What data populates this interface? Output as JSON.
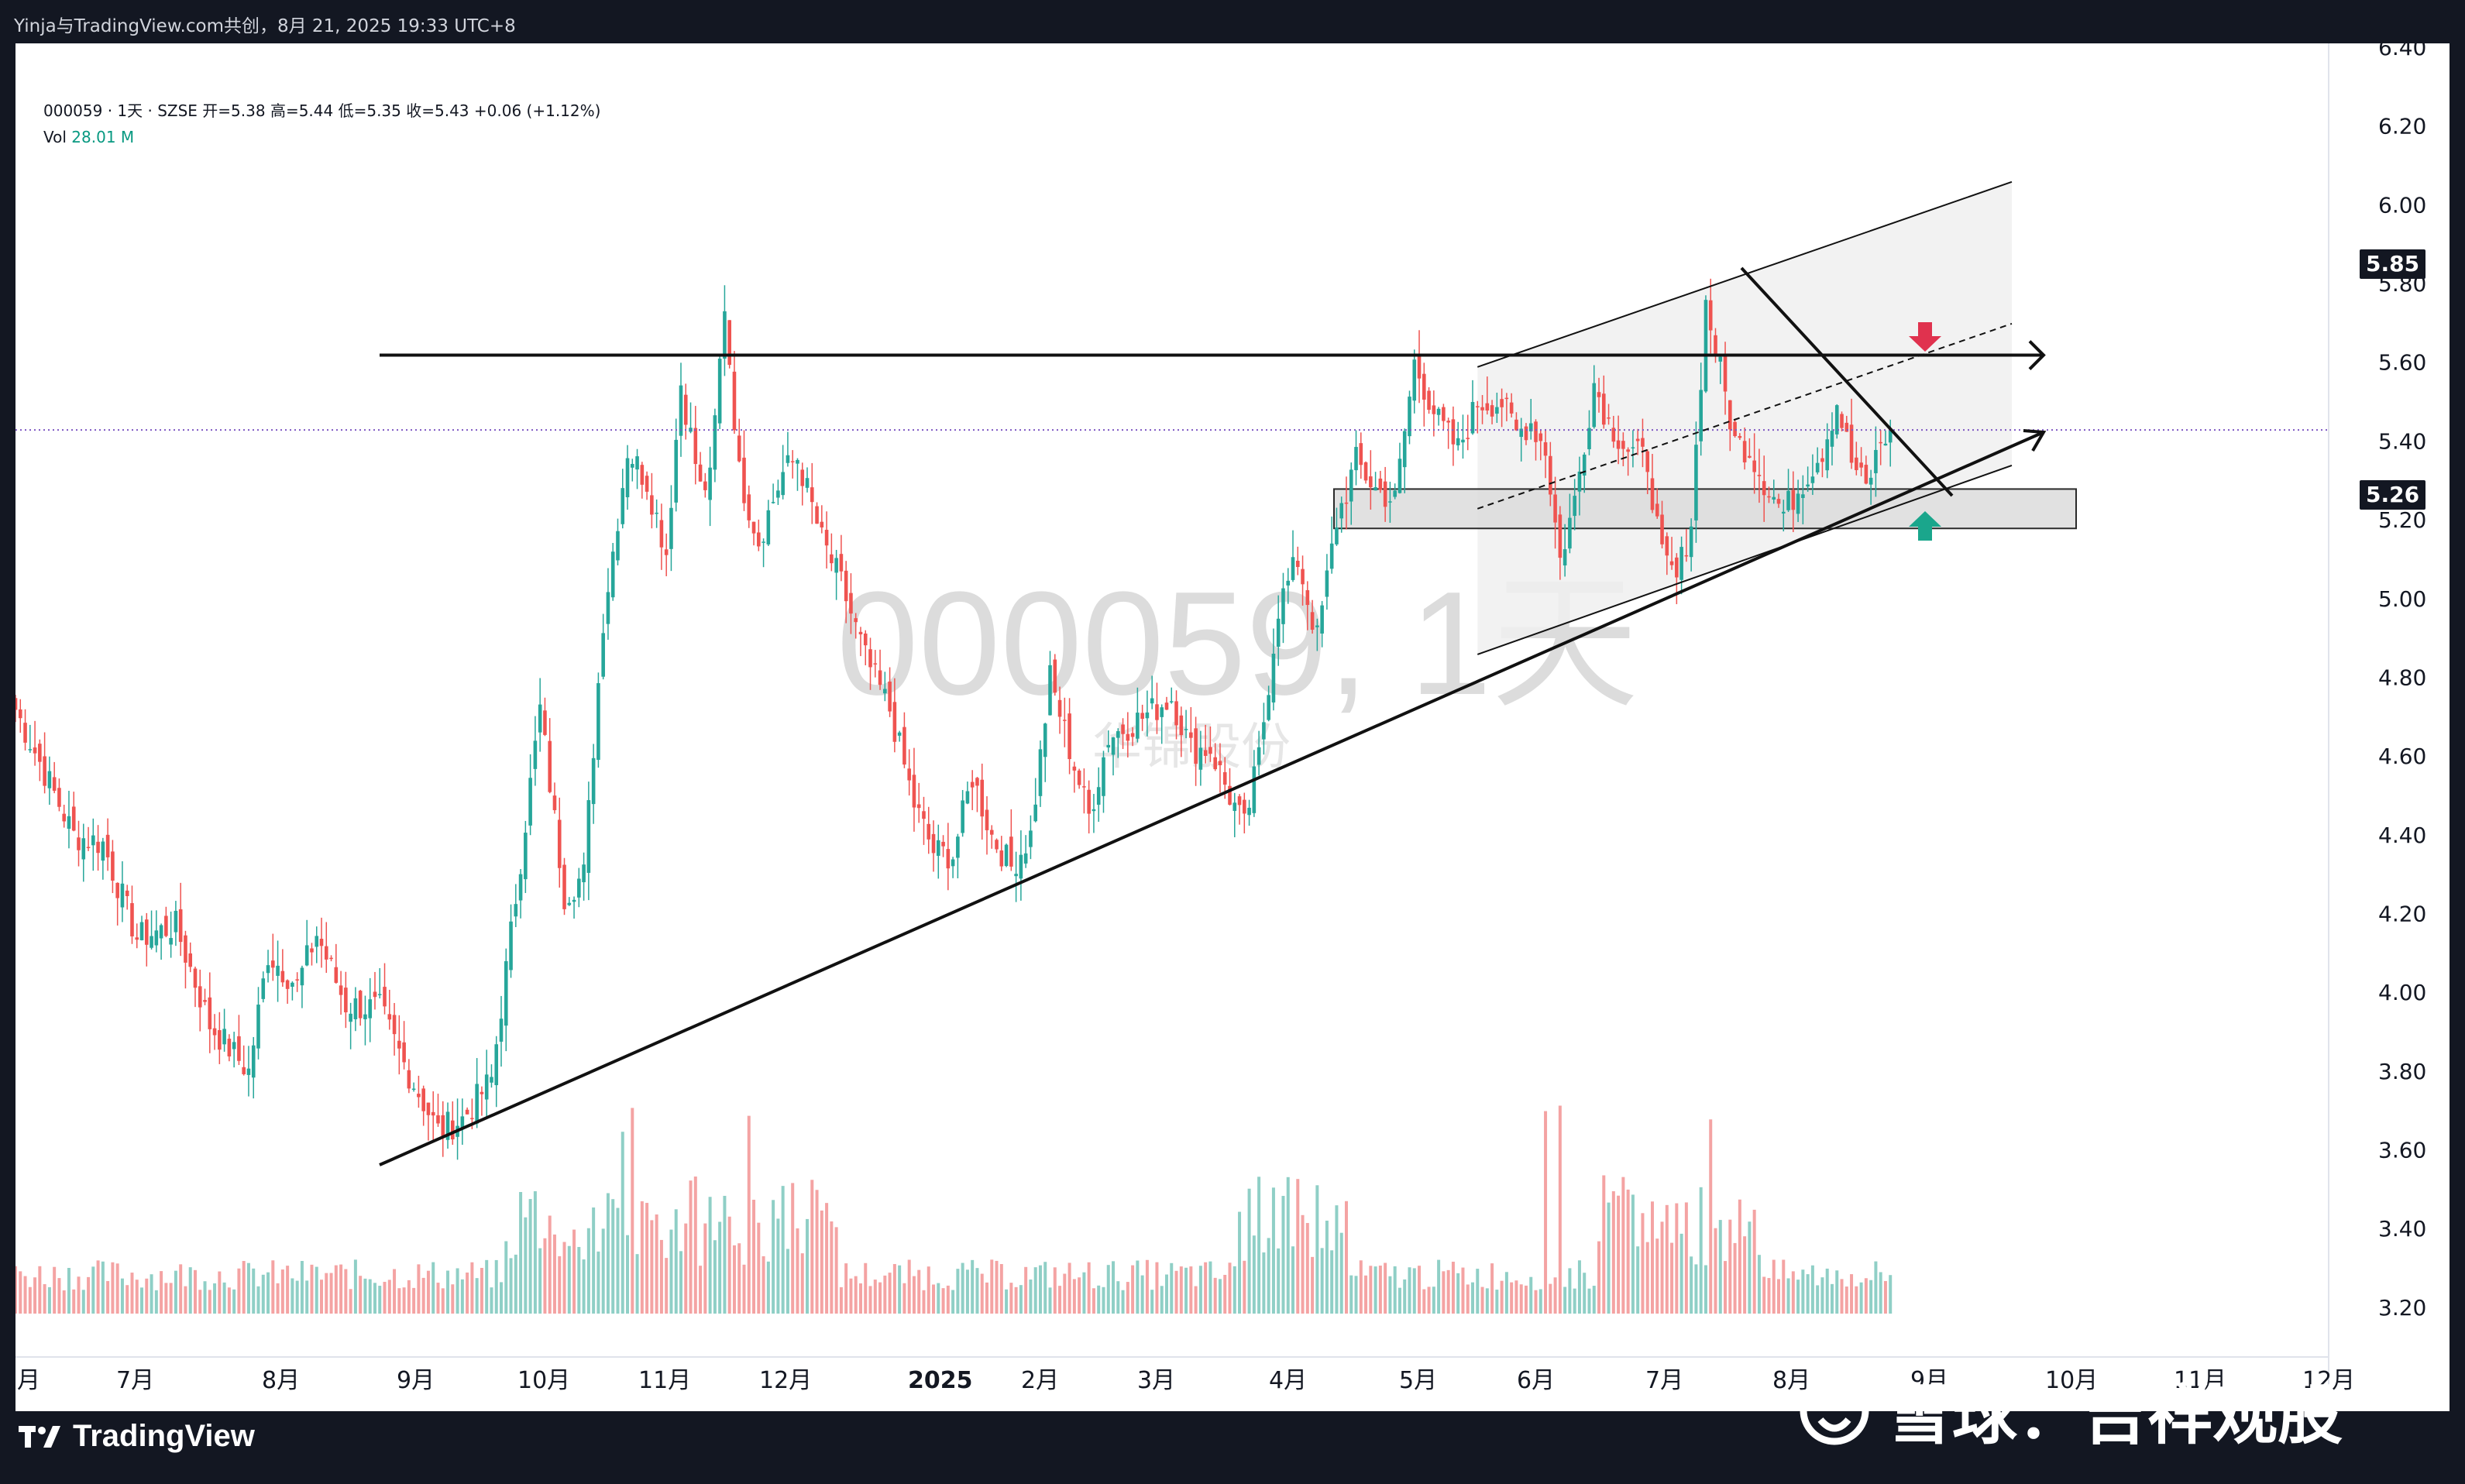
{
  "header": {
    "text": "Yinja与TradingView.com共创，8月 21, 2025 19:33 UTC+8"
  },
  "legend": {
    "symbol_line": "000059 · 1天 · SZSE  开=5.38  高=5.44  低=5.35  收=5.43  +0.06 (+1.12%)",
    "vol_label": "Vol",
    "vol_value": "28.01 M"
  },
  "watermark": {
    "symbol": "000059, 1天",
    "sub": "华锦股份"
  },
  "price_tags": {
    "upper": "5.85",
    "lower": "5.26"
  },
  "branding": {
    "tradingview": "TradingView",
    "xueqiu": "雪球：吉祥观股"
  },
  "colors": {
    "up": "#26a69a",
    "down": "#ef5350",
    "vol_up": "#8fcfc6",
    "vol_down": "#f4a3a3",
    "current_price_line": "#7e57c2",
    "arrow_down": "#e0324e",
    "arrow_up": "#1aa68c"
  },
  "chart_data": {
    "type": "candlestick",
    "price_axis": {
      "ticks": [
        "6.40",
        "6.20",
        "6.00",
        "5.80",
        "5.60",
        "5.40",
        "5.20",
        "5.00",
        "4.80",
        "4.60",
        "4.40",
        "4.20",
        "4.00",
        "3.80",
        "3.60",
        "3.40",
        "3.20"
      ],
      "range": [
        3.16,
        6.44
      ]
    },
    "time_axis": {
      "labels": [
        "月",
        "7月",
        "8月",
        "9月",
        "10月",
        "11月",
        "12月",
        "2025",
        "2月",
        "3月",
        "4月",
        "5月",
        "6月",
        "7月",
        "8月",
        "9月",
        "10月",
        "11月",
        "12月"
      ]
    },
    "last_price": 5.43,
    "waypoints": [
      [
        0,
        4.72
      ],
      [
        12,
        4.4
      ],
      [
        18,
        4.38
      ],
      [
        25,
        4.14
      ],
      [
        33,
        4.17
      ],
      [
        40,
        3.92
      ],
      [
        48,
        3.8
      ],
      [
        52,
        4.1
      ],
      [
        58,
        4.02
      ],
      [
        62,
        4.15
      ],
      [
        68,
        3.97
      ],
      [
        75,
        3.96
      ],
      [
        80,
        3.82
      ],
      [
        87,
        3.65
      ],
      [
        92,
        3.68
      ],
      [
        98,
        3.78
      ],
      [
        102,
        4.15
      ],
      [
        108,
        4.72
      ],
      [
        113,
        4.25
      ],
      [
        117,
        4.3
      ],
      [
        121,
        4.95
      ],
      [
        126,
        5.38
      ],
      [
        130,
        5.3
      ],
      [
        134,
        5.12
      ],
      [
        137,
        5.55
      ],
      [
        141,
        5.28
      ],
      [
        143,
        5.3
      ],
      [
        146,
        5.75
      ],
      [
        149,
        5.32
      ],
      [
        153,
        5.15
      ],
      [
        158,
        5.32
      ],
      [
        161,
        5.36
      ],
      [
        166,
        5.15
      ],
      [
        170,
        5.04
      ],
      [
        175,
        4.85
      ],
      [
        180,
        4.72
      ],
      [
        185,
        4.48
      ],
      [
        189,
        4.36
      ],
      [
        193,
        4.35
      ],
      [
        197,
        4.55
      ],
      [
        201,
        4.4
      ],
      [
        205,
        4.32
      ],
      [
        209,
        4.4
      ],
      [
        213,
        4.8
      ],
      [
        217,
        4.62
      ],
      [
        221,
        4.45
      ],
      [
        225,
        4.65
      ],
      [
        232,
        4.7
      ],
      [
        238,
        4.75
      ],
      [
        242,
        4.62
      ],
      [
        246,
        4.62
      ],
      [
        250,
        4.5
      ],
      [
        253,
        4.42
      ],
      [
        256,
        4.6
      ],
      [
        260,
        4.98
      ],
      [
        264,
        5.1
      ],
      [
        268,
        4.9
      ],
      [
        272,
        5.2
      ],
      [
        276,
        5.35
      ],
      [
        280,
        5.28
      ],
      [
        284,
        5.25
      ],
      [
        288,
        5.6
      ],
      [
        293,
        5.45
      ],
      [
        297,
        5.38
      ],
      [
        301,
        5.5
      ],
      [
        306,
        5.5
      ],
      [
        309,
        5.42
      ],
      [
        312,
        5.45
      ],
      [
        315,
        5.38
      ],
      [
        318,
        5.1
      ],
      [
        321,
        5.25
      ],
      [
        325,
        5.55
      ],
      [
        328,
        5.45
      ],
      [
        332,
        5.38
      ],
      [
        336,
        5.35
      ],
      [
        339,
        5.1
      ],
      [
        342,
        5.05
      ],
      [
        345,
        5.2
      ],
      [
        348,
        5.75
      ],
      [
        351,
        5.58
      ],
      [
        354,
        5.4
      ],
      [
        357,
        5.38
      ],
      [
        360,
        5.3
      ],
      [
        364,
        5.22
      ],
      [
        368,
        5.3
      ],
      [
        372,
        5.38
      ],
      [
        375,
        5.5
      ],
      [
        378,
        5.35
      ],
      [
        381,
        5.28
      ],
      [
        384,
        5.4
      ],
      [
        386,
        5.43
      ]
    ],
    "annotations": {
      "resistance_horizontal": [
        5.62,
        5.62
      ],
      "rising_trendline": [
        [
          85,
          3.55
        ],
        [
          400,
          5.4
        ]
      ],
      "channel_upper": [
        [
          301,
          5.59
        ],
        [
          411,
          6.06
        ]
      ],
      "channel_lower": [
        [
          301,
          4.86
        ],
        [
          411,
          5.34
        ]
      ],
      "channel_mid": [
        [
          301,
          5.23
        ],
        [
          411,
          5.7
        ]
      ],
      "descending_line": [
        [
          346,
          5.85
        ],
        [
          387,
          5.26
        ]
      ],
      "support_box": [
        5.18,
        5.28
      ],
      "markers": [
        "down-arrow 5.65",
        "up-arrow 5.17"
      ]
    }
  }
}
